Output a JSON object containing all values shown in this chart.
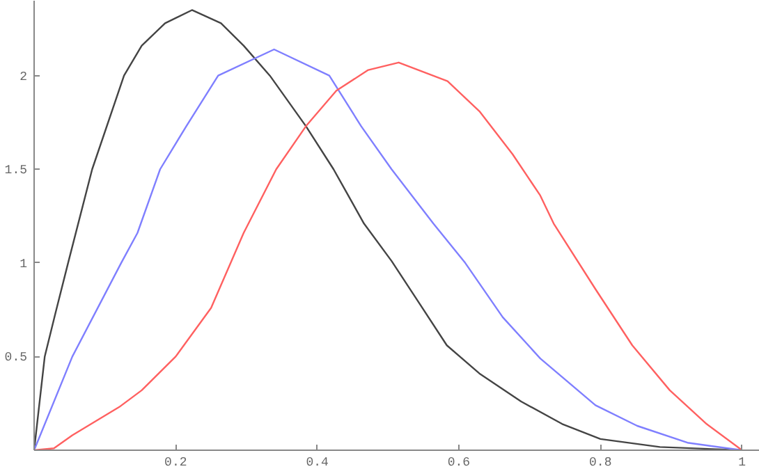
{
  "chart_data": {
    "type": "line",
    "xlim": [
      0,
      1.025
    ],
    "ylim": [
      0,
      2.4
    ],
    "xticks": [
      0.2,
      0.4,
      0.6,
      0.8,
      1
    ],
    "yticks": [
      0.5,
      1,
      1.5,
      2
    ],
    "grid": false,
    "marker": "none",
    "line_style": "solid",
    "series": [
      {
        "color": "#444444",
        "x": [
          0,
          0.015,
          0.03,
          0.048,
          0.082,
          0.127,
          0.152,
          0.185,
          0.223,
          0.264,
          0.296,
          0.333,
          0.384,
          0.423,
          0.466,
          0.505,
          0.545,
          0.583,
          0.629,
          0.688,
          0.746,
          0.8,
          0.884,
          1
        ],
        "values": [
          0,
          0.5,
          0.73,
          1.0,
          1.5,
          2.0,
          2.16,
          2.28,
          2.35,
          2.28,
          2.16,
          2.0,
          1.73,
          1.5,
          1.21,
          1.01,
          0.78,
          0.56,
          0.41,
          0.26,
          0.14,
          0.06,
          0.017,
          0
        ]
      },
      {
        "color": "#7f7fff",
        "x": [
          0,
          0.054,
          0.123,
          0.146,
          0.178,
          0.215,
          0.26,
          0.339,
          0.417,
          0.462,
          0.505,
          0.564,
          0.609,
          0.662,
          0.715,
          0.793,
          0.852,
          0.923,
          1
        ],
        "values": [
          0,
          0.5,
          1.0,
          1.16,
          1.5,
          1.73,
          2.0,
          2.14,
          2.0,
          1.73,
          1.5,
          1.21,
          1.0,
          0.71,
          0.49,
          0.24,
          0.13,
          0.04,
          0
        ]
      },
      {
        "color": "#ff6060",
        "x": [
          0,
          0.028,
          0.054,
          0.12,
          0.152,
          0.2,
          0.25,
          0.296,
          0.342,
          0.384,
          0.427,
          0.472,
          0.515,
          0.584,
          0.629,
          0.676,
          0.715,
          0.734,
          0.793,
          0.845,
          0.898,
          0.95,
          1
        ],
        "values": [
          0,
          0.01,
          0.08,
          0.23,
          0.32,
          0.5,
          0.76,
          1.16,
          1.5,
          1.73,
          1.92,
          2.03,
          2.07,
          1.97,
          1.81,
          1.58,
          1.36,
          1.21,
          0.86,
          0.56,
          0.32,
          0.14,
          0
        ]
      }
    ]
  }
}
